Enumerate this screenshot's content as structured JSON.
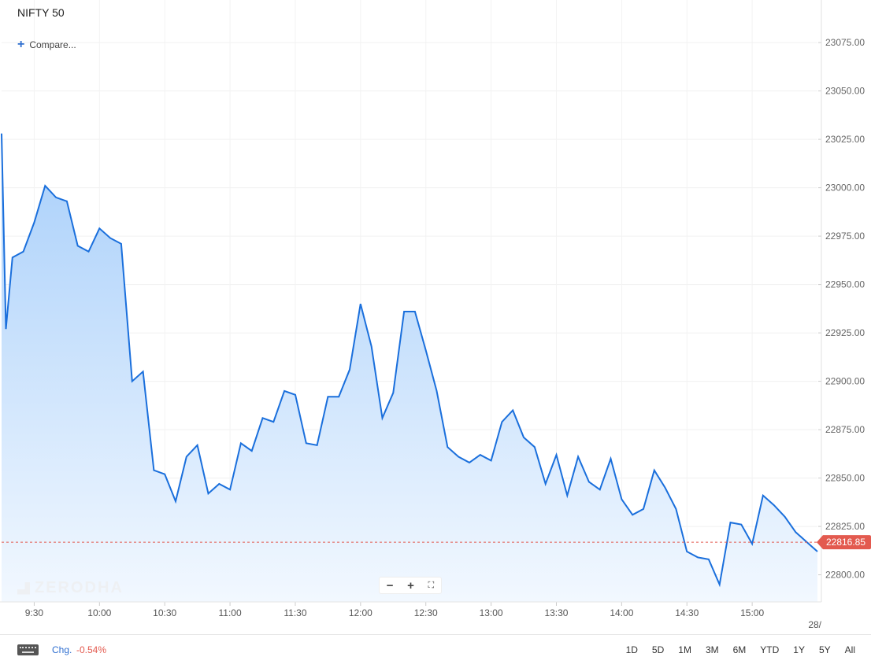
{
  "header": {
    "symbol": "NIFTY 50",
    "compare_label": "Compare..."
  },
  "watermark": "ZERODHA",
  "zoom_controls": {
    "minus_icon": "minus-icon",
    "plus_icon": "plus-icon",
    "fullscreen_icon": "fullscreen-icon"
  },
  "footer": {
    "change_label": "Chg.",
    "change_value": "-0.54%",
    "periods": [
      "1D",
      "5D",
      "1M",
      "3M",
      "6M",
      "YTD",
      "1Y",
      "5Y",
      "All"
    ]
  },
  "colors": {
    "line": "#1a6fdc",
    "fill_top": "#a8cffa",
    "fill_bottom": "#f2f8ff",
    "current_price": "#e35a4f",
    "change_negative": "#e35a4f",
    "accent": "#2f6fd0"
  },
  "chart_data": {
    "type": "area",
    "title": "NIFTY 50",
    "x_ticks": [
      "9:30",
      "10:00",
      "10:30",
      "11:00",
      "11:30",
      "12:00",
      "12:30",
      "13:00",
      "13:30",
      "14:00",
      "14:30",
      "15:00"
    ],
    "x_overflow_label": "28/",
    "y_ticks": [
      22800.0,
      22825.0,
      22850.0,
      22875.0,
      22900.0,
      22925.0,
      22950.0,
      22975.0,
      23000.0,
      23025.0,
      23050.0,
      23075.0
    ],
    "ylim": [
      22786,
      23097
    ],
    "xlim": [
      "9:15",
      "15:30"
    ],
    "grid": true,
    "current_price": 22816.85,
    "current_price_label": "22816.85",
    "series": [
      {
        "x": [
          "9:15",
          "9:17",
          "9:20",
          "9:25",
          "9:30",
          "9:35",
          "9:40",
          "9:45",
          "9:50",
          "9:55",
          "10:00",
          "10:05",
          "10:10",
          "10:15",
          "10:20",
          "10:25",
          "10:30",
          "10:35",
          "10:40",
          "10:45",
          "10:50",
          "10:55",
          "11:00",
          "11:05",
          "11:10",
          "11:15",
          "11:20",
          "11:25",
          "11:30",
          "11:35",
          "11:40",
          "11:45",
          "11:50",
          "11:55",
          "12:00",
          "12:05",
          "12:10",
          "12:15",
          "12:20",
          "12:25",
          "12:30",
          "12:35",
          "12:40",
          "12:45",
          "12:50",
          "12:55",
          "13:00",
          "13:05",
          "13:10",
          "13:15",
          "13:20",
          "13:25",
          "13:30",
          "13:35",
          "13:40",
          "13:45",
          "13:50",
          "13:55",
          "14:00",
          "14:05",
          "14:10",
          "14:15",
          "14:20",
          "14:25",
          "14:30",
          "14:35",
          "14:40",
          "14:45",
          "14:50",
          "14:55",
          "15:00",
          "15:05",
          "15:10",
          "15:15",
          "15:20",
          "15:25",
          "15:30"
        ],
        "values": [
          23028,
          22927,
          22964,
          22967,
          22982,
          23001,
          22995,
          22993,
          22970,
          22967,
          22979,
          22974,
          22971,
          22900,
          22905,
          22854,
          22852,
          22838,
          22861,
          22867,
          22842,
          22847,
          22844,
          22868,
          22864,
          22881,
          22879,
          22895,
          22893,
          22868,
          22867,
          22892,
          22892,
          22906,
          22940,
          22918,
          22881,
          22894,
          22936,
          22936,
          22916,
          22895,
          22866,
          22861,
          22858,
          22862,
          22859,
          22879,
          22885,
          22871,
          22866,
          22847,
          22862,
          22841,
          22861,
          22848,
          22844,
          22860,
          22839,
          22831,
          22834,
          22854,
          22845,
          22834,
          22812,
          22809,
          22808,
          22795,
          22827,
          22826,
          22816,
          22841,
          22836,
          22830,
          22822,
          22817,
          22812
        ]
      }
    ]
  }
}
